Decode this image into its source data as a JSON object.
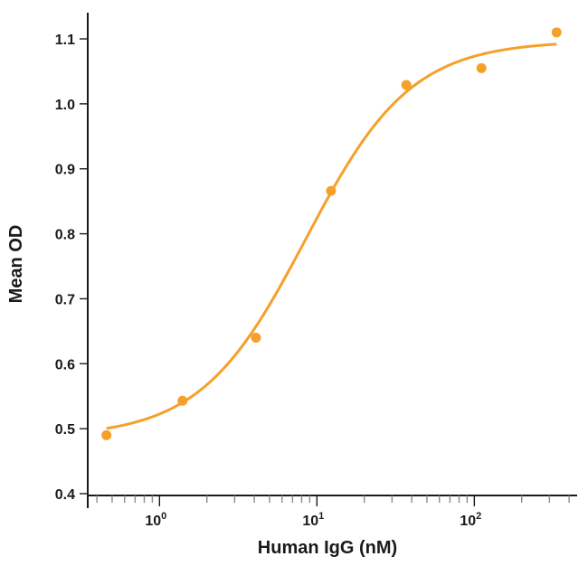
{
  "chart_data": {
    "type": "scatter",
    "title": "",
    "xlabel": "Human IgG (nM)",
    "ylabel": "Mean OD",
    "x_scale": "log10",
    "xlim": [
      0.35,
      450
    ],
    "ylim": [
      0.4,
      1.14
    ],
    "y_ticks": [
      0.4,
      0.5,
      0.6,
      0.7,
      0.8,
      0.9,
      1.0,
      1.1
    ],
    "y_tick_labels": [
      "0.4",
      "0.5",
      "0.6",
      "0.7",
      "0.8",
      "0.9",
      "1.0",
      "1.1"
    ],
    "x_ticks": [
      {
        "value": 1,
        "base": "10",
        "exponent": "0"
      },
      {
        "value": 10,
        "base": "10",
        "exponent": "1"
      },
      {
        "value": 100,
        "base": "10",
        "exponent": "2"
      }
    ],
    "color": "#f5a02a",
    "series": [
      {
        "name": "Human IgG",
        "points": [
          {
            "x": 0.46,
            "y": 0.49
          },
          {
            "x": 1.4,
            "y": 0.543
          },
          {
            "x": 4.1,
            "y": 0.64
          },
          {
            "x": 12.3,
            "y": 0.866
          },
          {
            "x": 37,
            "y": 1.029
          },
          {
            "x": 111,
            "y": 1.055
          },
          {
            "x": 333,
            "y": 1.11
          }
        ]
      }
    ],
    "fit": {
      "model": "4PL",
      "bottom": 0.487,
      "top": 1.097,
      "ec50": 8.5,
      "hill": 1.3,
      "x_range": [
        0.46,
        333
      ]
    }
  }
}
